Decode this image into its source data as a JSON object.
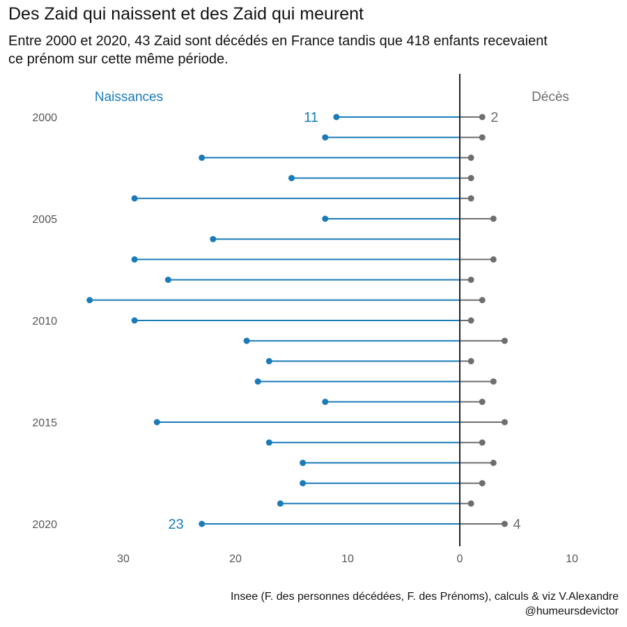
{
  "title": "Des Zaid qui naissent et des Zaid qui meurent",
  "subtitle": "Entre 2000 et 2020, 43 Zaid sont décédés en France tandis que 418 enfants recevaient ce prénom sur cette même période.",
  "caption": "Insee (F. des personnes décédées, F. des Prénoms), calculs & viz V.Alexandre @humeursdevictor",
  "colors": {
    "births": "#1a7bb9",
    "deaths": "#6e6e6e",
    "axis": "#222222",
    "tick_text": "#555555"
  },
  "chart_data": {
    "type": "lollipop",
    "title": "Des Zaid qui naissent et des Zaid qui meurent",
    "group_labels": {
      "births": "Naissances",
      "deaths": "Décès"
    },
    "years": [
      2000,
      2001,
      2002,
      2003,
      2004,
      2005,
      2006,
      2007,
      2008,
      2009,
      2010,
      2011,
      2012,
      2013,
      2014,
      2015,
      2016,
      2017,
      2018,
      2019,
      2020
    ],
    "year_tick_labels": [
      "2000",
      "2005",
      "2010",
      "2015",
      "2020"
    ],
    "series": [
      {
        "name": "Naissances",
        "values": [
          11,
          12,
          23,
          15,
          29,
          12,
          22,
          29,
          26,
          33,
          29,
          19,
          17,
          18,
          12,
          27,
          17,
          14,
          14,
          16,
          23
        ]
      },
      {
        "name": "Décès",
        "values": [
          2,
          2,
          1,
          1,
          1,
          3,
          0,
          3,
          1,
          2,
          1,
          4,
          1,
          3,
          2,
          4,
          2,
          3,
          2,
          1,
          4
        ]
      }
    ],
    "annotations": [
      {
        "year": 2000,
        "series": "Naissances",
        "text": "11"
      },
      {
        "year": 2000,
        "series": "Décès",
        "text": "2"
      },
      {
        "year": 2020,
        "series": "Naissances",
        "text": "23"
      },
      {
        "year": 2020,
        "series": "Décès",
        "text": "4"
      }
    ],
    "x_tick_labels": [
      "30",
      "20",
      "10",
      "0",
      "10"
    ],
    "xlim": [
      -35,
      10
    ],
    "grid": false
  }
}
